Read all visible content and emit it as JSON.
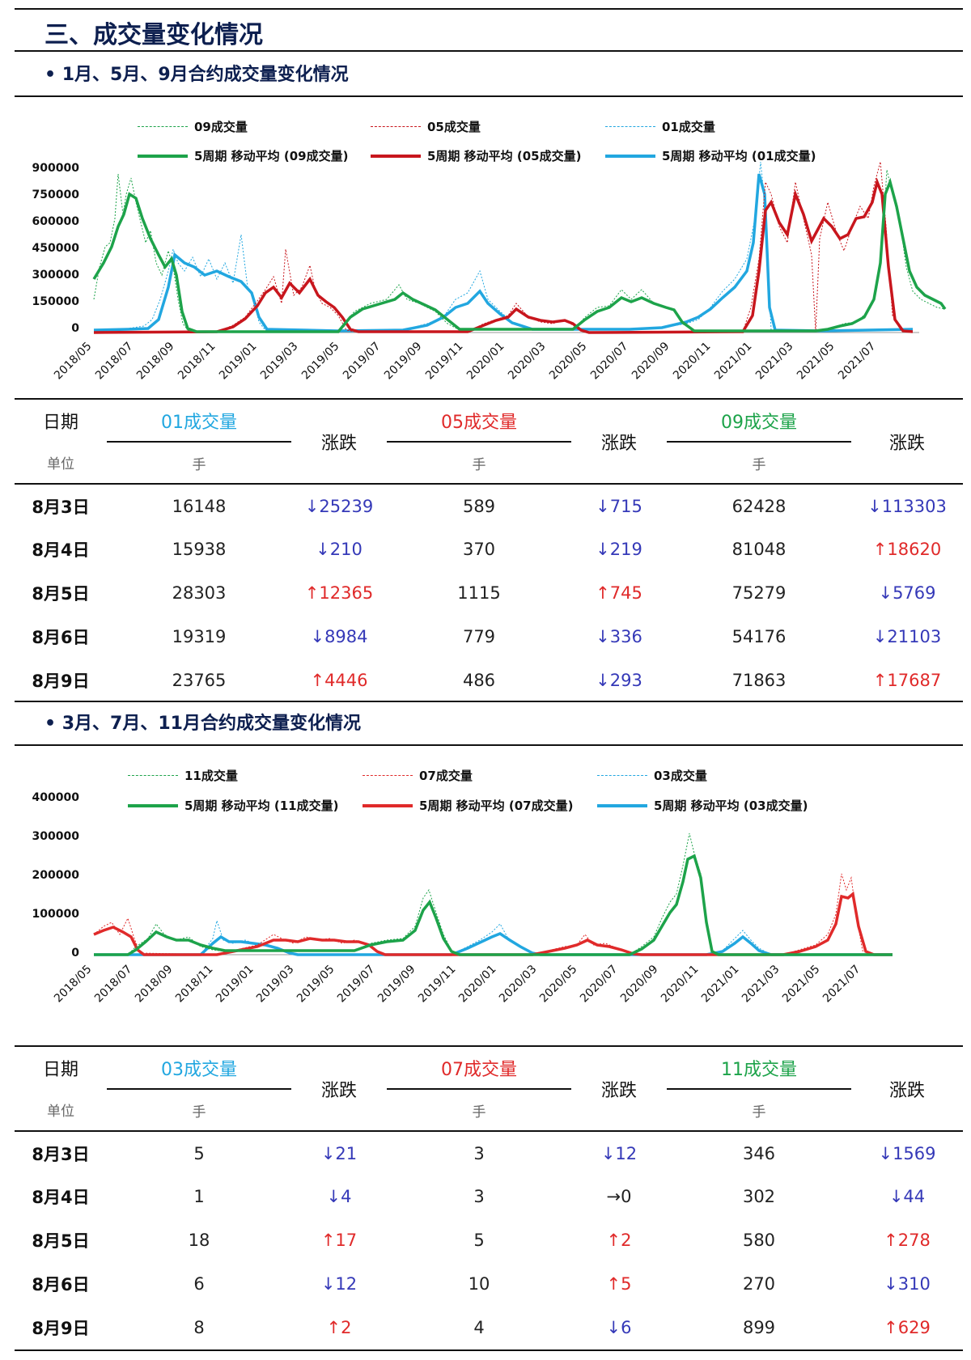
{
  "page_title": "三、成交量变化情况",
  "section1": {
    "subtitle": "• 1月、5月、9月合约成交量变化情况",
    "chart": {
      "legend": [
        "09成交量",
        "05成交量",
        "01成交量",
        "5周期 移动平均 (09成交量)",
        "5周期 移动平均 (05成交量)",
        "5周期 移动平均 (01成交量)"
      ],
      "yticks": [
        "900000",
        "750000",
        "600000",
        "450000",
        "300000",
        "150000",
        "0"
      ],
      "xticks": [
        "2018/05",
        "2018/07",
        "2018/09",
        "2018/11",
        "2019/01",
        "2019/03",
        "2019/05",
        "2019/07",
        "2019/09",
        "2019/11",
        "2020/01",
        "2020/03",
        "2020/05",
        "2020/07",
        "2020/09",
        "2020/11",
        "2021/01",
        "2021/03",
        "2021/05",
        "2021/07"
      ]
    },
    "table": {
      "date_header": "日期",
      "unit_label": "单位",
      "series": [
        "01成交量",
        "05成交量",
        "09成交量"
      ],
      "change_header": "涨跌",
      "unit": "手",
      "rows": [
        {
          "date": "8月3日",
          "v1": "16148",
          "c1": "↓25239",
          "d1": "down",
          "v2": "589",
          "c2": "↓715",
          "d2": "down",
          "v3": "62428",
          "c3": "↓113303",
          "d3": "down"
        },
        {
          "date": "8月4日",
          "v1": "15938",
          "c1": "↓210",
          "d1": "down",
          "v2": "370",
          "c2": "↓219",
          "d2": "down",
          "v3": "81048",
          "c3": "↑18620",
          "d3": "up"
        },
        {
          "date": "8月5日",
          "v1": "28303",
          "c1": "↑12365",
          "d1": "up",
          "v2": "1115",
          "c2": "↑745",
          "d2": "up",
          "v3": "75279",
          "c3": "↓5769",
          "d3": "down"
        },
        {
          "date": "8月6日",
          "v1": "19319",
          "c1": "↓8984",
          "d1": "down",
          "v2": "779",
          "c2": "↓336",
          "d2": "down",
          "v3": "54176",
          "c3": "↓21103",
          "d3": "down"
        },
        {
          "date": "8月9日",
          "v1": "23765",
          "c1": "↑4446",
          "d1": "up",
          "v2": "486",
          "c2": "↓293",
          "d2": "down",
          "v3": "71863",
          "c3": "↑17687",
          "d3": "up"
        }
      ]
    }
  },
  "section2": {
    "subtitle": "• 3月、7月、11月合约成交量变化情况",
    "chart": {
      "legend": [
        "11成交量",
        "07成交量",
        "03成交量",
        "5周期 移动平均 (11成交量)",
        "5周期 移动平均 (07成交量)",
        "5周期 移动平均 (03成交量)"
      ],
      "yticks": [
        "400000",
        "300000",
        "200000",
        "100000",
        "0"
      ],
      "xticks": [
        "2018/05",
        "2018/07",
        "2018/09",
        "2018/11",
        "2019/01",
        "2019/03",
        "2019/05",
        "2019/07",
        "2019/09",
        "2019/11",
        "2020/01",
        "2020/03",
        "2020/05",
        "2020/07",
        "2020/09",
        "2020/11",
        "2021/01",
        "2021/03",
        "2021/05",
        "2021/07"
      ]
    },
    "table": {
      "date_header": "日期",
      "unit_label": "单位",
      "series": [
        "03成交量",
        "07成交量",
        "11成交量"
      ],
      "change_header": "涨跌",
      "unit": "手",
      "rows": [
        {
          "date": "8月3日",
          "v1": "5",
          "c1": "↓21",
          "d1": "down",
          "v2": "3",
          "c2": "↓12",
          "d2": "down",
          "v3": "346",
          "c3": "↓1569",
          "d3": "down"
        },
        {
          "date": "8月4日",
          "v1": "1",
          "c1": "↓4",
          "d1": "down",
          "v2": "3",
          "c2": "→0",
          "d2": "flat",
          "v3": "302",
          "c3": "↓44",
          "d3": "down"
        },
        {
          "date": "8月5日",
          "v1": "18",
          "c1": "↑17",
          "d1": "up",
          "v2": "5",
          "c2": "↑2",
          "d2": "up",
          "v3": "580",
          "c3": "↑278",
          "d3": "up"
        },
        {
          "date": "8月6日",
          "v1": "6",
          "c1": "↓12",
          "d1": "down",
          "v2": "10",
          "c2": "↑5",
          "d2": "up",
          "v3": "270",
          "c3": "↓310",
          "d3": "down"
        },
        {
          "date": "8月9日",
          "v1": "8",
          "c1": "↑2",
          "d1": "up",
          "v2": "4",
          "c2": "↓6",
          "d2": "down",
          "v3": "899",
          "c3": "↑629",
          "d3": "up"
        }
      ]
    }
  },
  "colors": {
    "green": "#1da34a",
    "red": "#c8161d",
    "red2": "#e02a2a",
    "blue": "#22a7e0",
    "down": "#3539b8"
  }
}
